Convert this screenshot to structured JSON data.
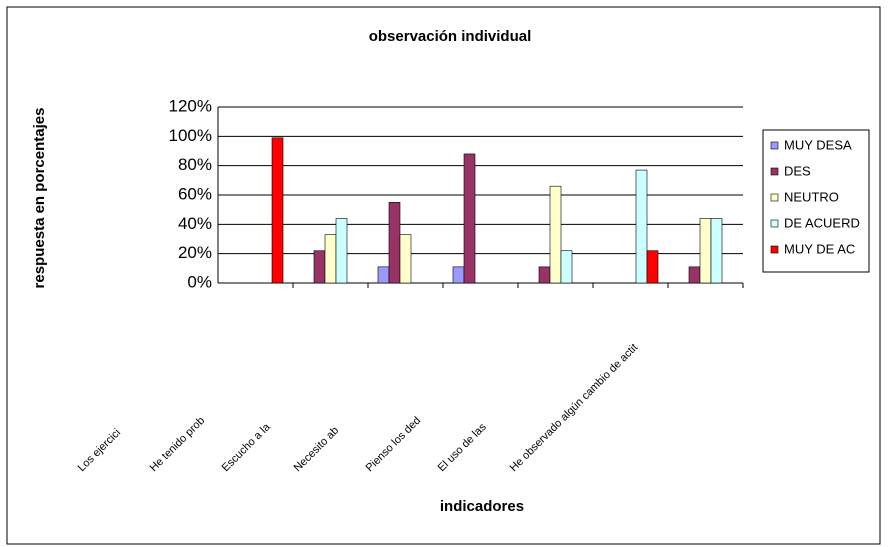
{
  "chart_data": {
    "type": "bar",
    "title": "observación individual",
    "x_label": "indicadores",
    "y_label": "respuesta en porcentajes",
    "categories": [
      "Los ejercici",
      "He tenido prob",
      "Escucho a la",
      "Necesito ab",
      "Pienso los ded",
      "El uso de las",
      "He observado algún cambio de actit"
    ],
    "series": [
      {
        "name": "MUY DESA",
        "color": "#9999ff",
        "values": [
          0,
          0,
          11,
          11,
          0,
          0,
          0
        ]
      },
      {
        "name": "DES",
        "color": "#993366",
        "values": [
          0,
          22,
          55,
          88,
          11,
          0,
          11
        ]
      },
      {
        "name": "NEUTRO",
        "color": "#ffffcc",
        "values": [
          0,
          33,
          33,
          0,
          66,
          0,
          44
        ]
      },
      {
        "name": "DE ACUERD",
        "color": "#ccffff",
        "values": [
          0,
          44,
          0,
          0,
          22,
          77,
          44
        ]
      },
      {
        "name": "MUY DE AC",
        "color": "#ff0000",
        "values": [
          99,
          0,
          0,
          0,
          0,
          22,
          0
        ]
      }
    ],
    "ylim": [
      0,
      120
    ],
    "yticks": [
      {
        "value": 0,
        "label": "0%"
      },
      {
        "value": 20,
        "label": "20%"
      },
      {
        "value": 40,
        "label": "40%"
      },
      {
        "value": 60,
        "label": "60%"
      },
      {
        "value": 80,
        "label": "80%"
      },
      {
        "value": 100,
        "label": "100%"
      },
      {
        "value": 120,
        "label": "120%"
      }
    ],
    "grid": true,
    "legend": "right"
  }
}
